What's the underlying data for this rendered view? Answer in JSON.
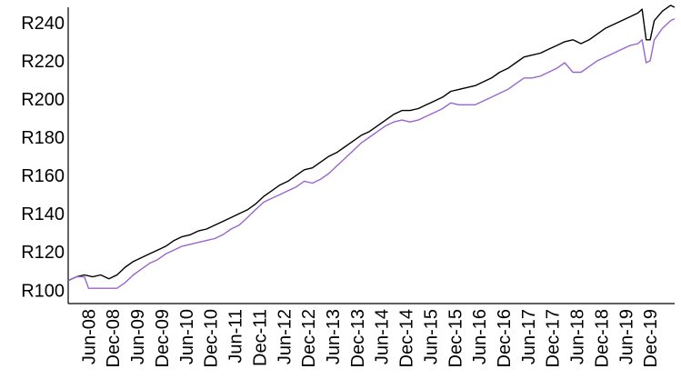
{
  "chart_data": {
    "type": "line",
    "xlabel": "",
    "ylabel": "",
    "grid": false,
    "legend": "none",
    "y_tick_labels": [
      "R100",
      "R120",
      "R140",
      "R160",
      "R180",
      "R200",
      "R220",
      "R240"
    ],
    "y_tick_values": [
      100,
      120,
      140,
      160,
      180,
      200,
      220,
      240
    ],
    "ylim": [
      93,
      248
    ],
    "x_tick_labels": [
      "Jun-08",
      "Dec-08",
      "Jun-09",
      "Dec-09",
      "Jun-10",
      "Dec-10",
      "Jun-11",
      "Dec-11",
      "Jun-12",
      "Dec-12",
      "Jun-13",
      "Dec-13",
      "Jun-14",
      "Dec-14",
      "Jun-15",
      "Dec-15",
      "Jun-16",
      "Dec-16",
      "Jun-17",
      "Dec-17",
      "Jun-18",
      "Dec-18",
      "Jun-19",
      "Dec-19"
    ],
    "x_tick_dates": [
      "2008-06",
      "2008-12",
      "2009-06",
      "2009-12",
      "2010-06",
      "2010-12",
      "2011-06",
      "2011-12",
      "2012-06",
      "2012-12",
      "2013-06",
      "2013-12",
      "2014-06",
      "2014-12",
      "2015-06",
      "2015-12",
      "2016-06",
      "2016-12",
      "2017-06",
      "2017-12",
      "2018-06",
      "2018-12",
      "2019-06",
      "2019-12"
    ],
    "xlim": [
      "2008-01",
      "2020-06"
    ],
    "series": [
      {
        "color": "#000000",
        "points": [
          [
            "2008-01",
            105
          ],
          [
            "2008-03",
            107
          ],
          [
            "2008-05",
            108
          ],
          [
            "2008-07",
            107
          ],
          [
            "2008-09",
            108
          ],
          [
            "2008-11",
            106
          ],
          [
            "2009-01",
            108
          ],
          [
            "2009-03",
            112
          ],
          [
            "2009-05",
            115
          ],
          [
            "2009-07",
            117
          ],
          [
            "2009-09",
            119
          ],
          [
            "2009-11",
            121
          ],
          [
            "2010-01",
            123
          ],
          [
            "2010-03",
            126
          ],
          [
            "2010-05",
            128
          ],
          [
            "2010-07",
            129
          ],
          [
            "2010-09",
            131
          ],
          [
            "2010-11",
            132
          ],
          [
            "2011-01",
            134
          ],
          [
            "2011-03",
            136
          ],
          [
            "2011-05",
            138
          ],
          [
            "2011-07",
            140
          ],
          [
            "2011-09",
            142
          ],
          [
            "2011-11",
            145
          ],
          [
            "2012-01",
            149
          ],
          [
            "2012-03",
            152
          ],
          [
            "2012-05",
            155
          ],
          [
            "2012-07",
            157
          ],
          [
            "2012-09",
            160
          ],
          [
            "2012-11",
            163
          ],
          [
            "2013-01",
            164
          ],
          [
            "2013-03",
            167
          ],
          [
            "2013-05",
            170
          ],
          [
            "2013-07",
            172
          ],
          [
            "2013-09",
            175
          ],
          [
            "2013-11",
            178
          ],
          [
            "2014-01",
            181
          ],
          [
            "2014-03",
            183
          ],
          [
            "2014-05",
            186
          ],
          [
            "2014-07",
            189
          ],
          [
            "2014-09",
            192
          ],
          [
            "2014-11",
            194
          ],
          [
            "2015-01",
            194
          ],
          [
            "2015-03",
            195
          ],
          [
            "2015-05",
            197
          ],
          [
            "2015-07",
            199
          ],
          [
            "2015-09",
            201
          ],
          [
            "2015-11",
            204
          ],
          [
            "2016-01",
            205
          ],
          [
            "2016-03",
            206
          ],
          [
            "2016-05",
            207
          ],
          [
            "2016-07",
            209
          ],
          [
            "2016-09",
            211
          ],
          [
            "2016-11",
            214
          ],
          [
            "2017-01",
            216
          ],
          [
            "2017-03",
            219
          ],
          [
            "2017-05",
            222
          ],
          [
            "2017-07",
            223
          ],
          [
            "2017-09",
            224
          ],
          [
            "2017-11",
            226
          ],
          [
            "2018-01",
            228
          ],
          [
            "2018-03",
            230
          ],
          [
            "2018-05",
            231
          ],
          [
            "2018-07",
            229
          ],
          [
            "2018-09",
            231
          ],
          [
            "2018-11",
            234
          ],
          [
            "2019-01",
            237
          ],
          [
            "2019-03",
            239
          ],
          [
            "2019-05",
            241
          ],
          [
            "2019-07",
            243
          ],
          [
            "2019-09",
            245
          ],
          [
            "2019-10",
            247
          ],
          [
            "2019-11",
            231
          ],
          [
            "2019-12",
            231
          ],
          [
            "2020-01",
            241
          ],
          [
            "2020-03",
            246
          ],
          [
            "2020-05",
            249
          ],
          [
            "2020-06",
            248
          ]
        ]
      },
      {
        "color": "#9966cc",
        "points": [
          [
            "2008-01",
            105
          ],
          [
            "2008-03",
            107
          ],
          [
            "2008-05",
            107
          ],
          [
            "2008-06",
            101
          ],
          [
            "2008-09",
            101
          ],
          [
            "2008-11",
            101
          ],
          [
            "2009-01",
            101
          ],
          [
            "2009-03",
            104
          ],
          [
            "2009-05",
            108
          ],
          [
            "2009-07",
            111
          ],
          [
            "2009-09",
            114
          ],
          [
            "2009-11",
            116
          ],
          [
            "2010-01",
            119
          ],
          [
            "2010-03",
            121
          ],
          [
            "2010-05",
            123
          ],
          [
            "2010-07",
            124
          ],
          [
            "2010-09",
            125
          ],
          [
            "2010-11",
            126
          ],
          [
            "2011-01",
            127
          ],
          [
            "2011-03",
            129
          ],
          [
            "2011-05",
            132
          ],
          [
            "2011-07",
            134
          ],
          [
            "2011-09",
            138
          ],
          [
            "2011-11",
            142
          ],
          [
            "2012-01",
            146
          ],
          [
            "2012-03",
            148
          ],
          [
            "2012-05",
            150
          ],
          [
            "2012-07",
            152
          ],
          [
            "2012-09",
            154
          ],
          [
            "2012-11",
            157
          ],
          [
            "2013-01",
            156
          ],
          [
            "2013-03",
            158
          ],
          [
            "2013-05",
            161
          ],
          [
            "2013-07",
            165
          ],
          [
            "2013-09",
            169
          ],
          [
            "2013-11",
            173
          ],
          [
            "2014-01",
            177
          ],
          [
            "2014-03",
            180
          ],
          [
            "2014-05",
            183
          ],
          [
            "2014-07",
            186
          ],
          [
            "2014-09",
            188
          ],
          [
            "2014-11",
            189
          ],
          [
            "2015-01",
            188
          ],
          [
            "2015-03",
            189
          ],
          [
            "2015-05",
            191
          ],
          [
            "2015-07",
            193
          ],
          [
            "2015-09",
            195
          ],
          [
            "2015-11",
            198
          ],
          [
            "2016-01",
            197
          ],
          [
            "2016-03",
            197
          ],
          [
            "2016-05",
            197
          ],
          [
            "2016-07",
            199
          ],
          [
            "2016-09",
            201
          ],
          [
            "2016-11",
            203
          ],
          [
            "2017-01",
            205
          ],
          [
            "2017-03",
            208
          ],
          [
            "2017-05",
            211
          ],
          [
            "2017-07",
            211
          ],
          [
            "2017-09",
            212
          ],
          [
            "2017-11",
            214
          ],
          [
            "2018-01",
            216
          ],
          [
            "2018-03",
            219
          ],
          [
            "2018-05",
            214
          ],
          [
            "2018-07",
            214
          ],
          [
            "2018-09",
            217
          ],
          [
            "2018-11",
            220
          ],
          [
            "2019-01",
            222
          ],
          [
            "2019-03",
            224
          ],
          [
            "2019-05",
            226
          ],
          [
            "2019-07",
            228
          ],
          [
            "2019-09",
            229
          ],
          [
            "2019-10",
            231
          ],
          [
            "2019-11",
            219
          ],
          [
            "2019-12",
            220
          ],
          [
            "2020-01",
            231
          ],
          [
            "2020-03",
            237
          ],
          [
            "2020-05",
            241
          ],
          [
            "2020-06",
            242
          ]
        ]
      }
    ]
  }
}
